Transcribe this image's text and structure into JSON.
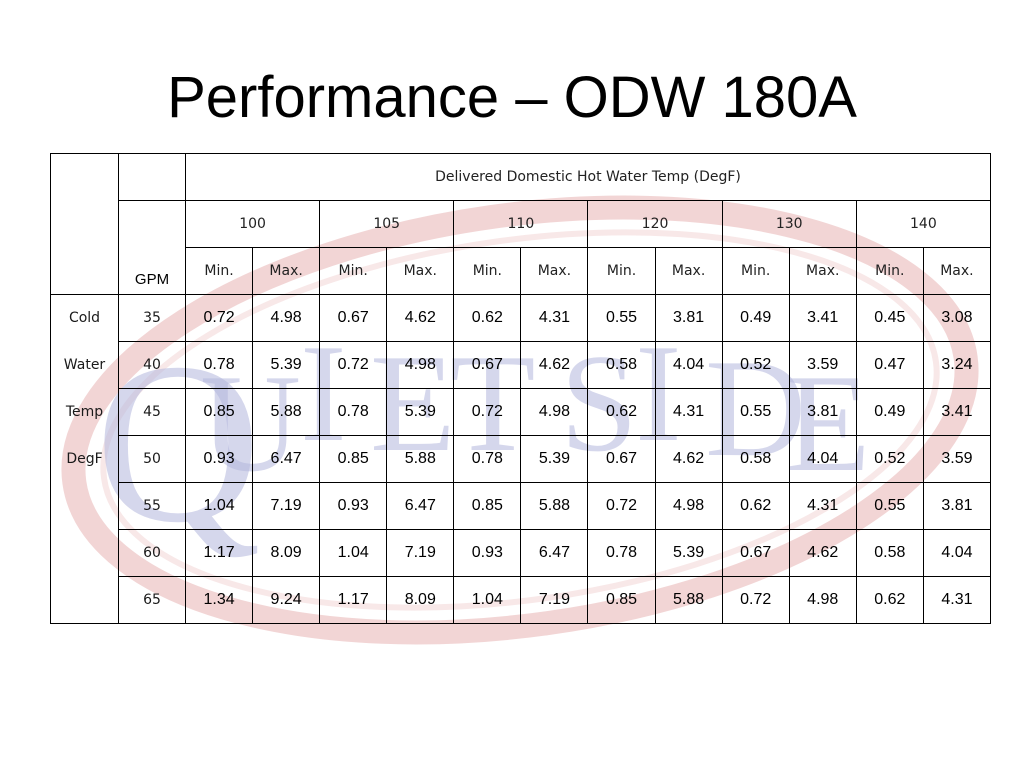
{
  "title": "Performance – ODW 180A",
  "watermark": {
    "text": "QUIETSIDE",
    "letters": [
      "Q",
      "U",
      "I",
      "E",
      "T",
      "S",
      "I",
      "D",
      "E"
    ],
    "ring_color": "#e9b9b9",
    "text_color": "#b3b7dd"
  },
  "table": {
    "group_header": "Delivered Domestic Hot Water Temp (DegF)",
    "temps": [
      "100",
      "105",
      "110",
      "120",
      "130",
      "140"
    ],
    "gpm_header": "GPM",
    "min_label": "Min.",
    "max_label": "Max.",
    "row_label_lines": [
      "Cold",
      "Water",
      "Temp",
      "DegF"
    ],
    "rows": [
      {
        "temp": "35",
        "values": [
          "0.72",
          "4.98",
          "0.67",
          "4.62",
          "0.62",
          "4.31",
          "0.55",
          "3.81",
          "0.49",
          "3.41",
          "0.45",
          "3.08"
        ]
      },
      {
        "temp": "40",
        "values": [
          "0.78",
          "5.39",
          "0.72",
          "4.98",
          "0.67",
          "4.62",
          "0.58",
          "4.04",
          "0.52",
          "3.59",
          "0.47",
          "3.24"
        ]
      },
      {
        "temp": "45",
        "values": [
          "0.85",
          "5.88",
          "0.78",
          "5.39",
          "0.72",
          "4.98",
          "0.62",
          "4.31",
          "0.55",
          "3.81",
          "0.49",
          "3.41"
        ]
      },
      {
        "temp": "50",
        "values": [
          "0.93",
          "6.47",
          "0.85",
          "5.88",
          "0.78",
          "5.39",
          "0.67",
          "4.62",
          "0.58",
          "4.04",
          "0.52",
          "3.59"
        ]
      },
      {
        "temp": "55",
        "values": [
          "1.04",
          "7.19",
          "0.93",
          "6.47",
          "0.85",
          "5.88",
          "0.72",
          "4.98",
          "0.62",
          "4.31",
          "0.55",
          "3.81"
        ]
      },
      {
        "temp": "60",
        "values": [
          "1.17",
          "8.09",
          "1.04",
          "7.19",
          "0.93",
          "6.47",
          "0.78",
          "5.39",
          "0.67",
          "4.62",
          "0.58",
          "4.04"
        ]
      },
      {
        "temp": "65",
        "values": [
          "1.34",
          "9.24",
          "1.17",
          "8.09",
          "1.04",
          "7.19",
          "0.85",
          "5.88",
          "0.72",
          "4.98",
          "0.62",
          "4.31"
        ]
      }
    ]
  }
}
